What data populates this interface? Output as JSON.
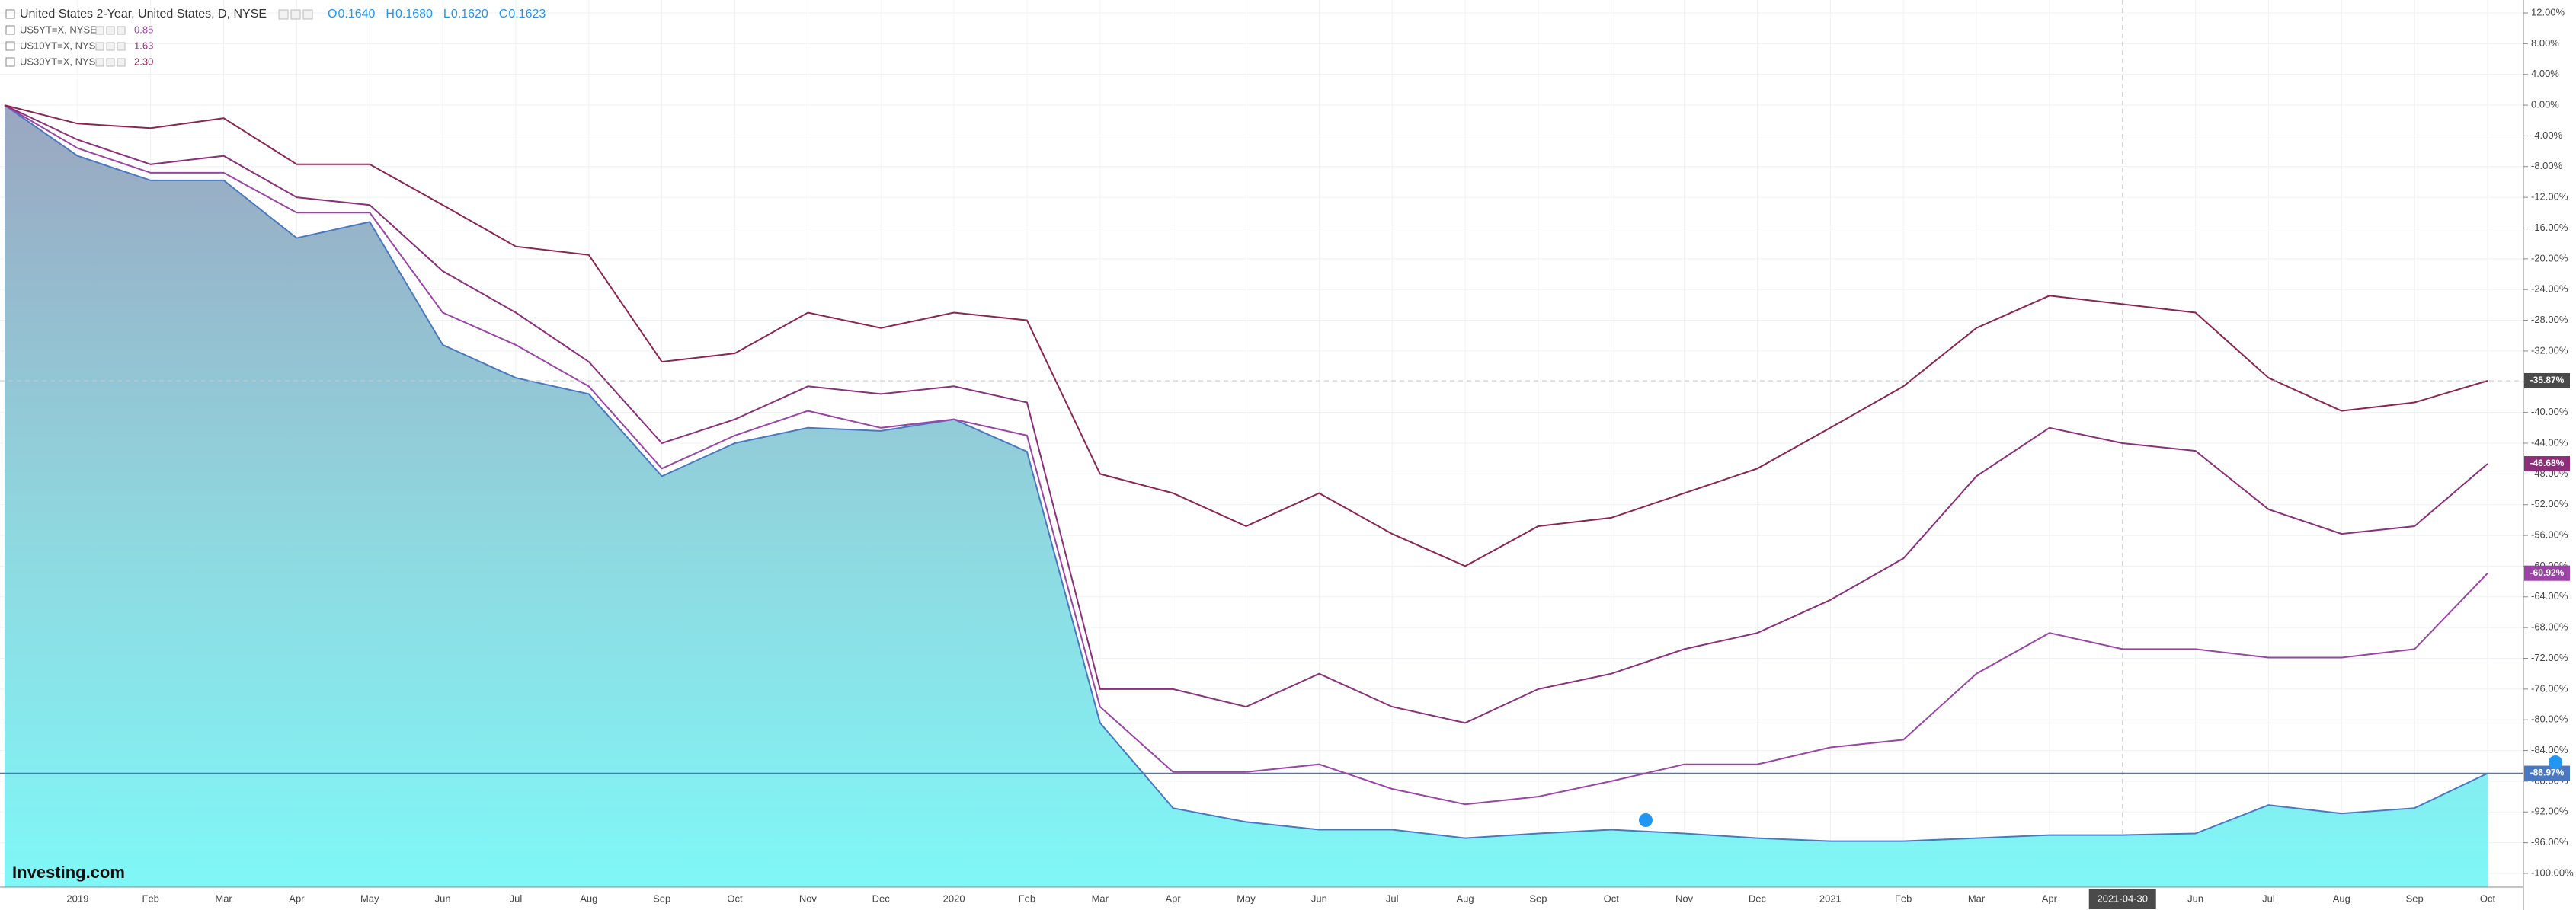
{
  "chart_data": {
    "type": "line",
    "header": {
      "ohlc": [
        [
          "O",
          "0.1640"
        ],
        [
          "H",
          "0.1680"
        ],
        [
          "L",
          "0.1620"
        ],
        [
          "C",
          "0.1623"
        ]
      ]
    },
    "logo": "Investing.com",
    "crosshair_label": "2021-04-30",
    "categories": [
      null,
      "2019",
      "Feb",
      "Mar",
      "Apr",
      "May",
      "Jun",
      "Jul",
      "Aug",
      "Sep",
      "Oct",
      "Nov",
      "Dec",
      "2020",
      "Feb",
      "Mar",
      "Apr",
      "May",
      "Jun",
      "Jul",
      "Aug",
      "Sep",
      "Oct",
      "Nov",
      "Dec",
      "2021",
      "Feb",
      "Mar",
      "Apr",
      null,
      "Jun",
      "Jul",
      "Aug",
      "Sep",
      "Oct"
    ],
    "ylim": [
      -100,
      12
    ],
    "yticks": [
      {
        "value": 12,
        "label": "12.00%"
      },
      {
        "value": 8,
        "label": "8.00%"
      },
      {
        "value": 4,
        "label": "4.00%"
      },
      {
        "value": 0,
        "label": "0.00%"
      },
      {
        "value": -4,
        "label": "-4.00%"
      },
      {
        "value": -8,
        "label": "-8.00%"
      },
      {
        "value": -12,
        "label": "-12.00%"
      },
      {
        "value": -16,
        "label": "-16.00%"
      },
      {
        "value": -20,
        "label": "-20.00%"
      },
      {
        "value": -24,
        "label": "-24.00%"
      },
      {
        "value": -28,
        "label": "-28.00%"
      },
      {
        "value": -32,
        "label": "-32.00%"
      },
      {
        "value": -36,
        "label": "-36.00%"
      },
      {
        "value": -40,
        "label": "-40.00%"
      },
      {
        "value": -44,
        "label": "-44.00%"
      },
      {
        "value": -48,
        "label": "-48.00%"
      },
      {
        "value": -52,
        "label": "-52.00%"
      },
      {
        "value": -56,
        "label": "-56.00%"
      },
      {
        "value": -60,
        "label": "-60.00%"
      },
      {
        "value": -64,
        "label": "-64.00%"
      },
      {
        "value": -68,
        "label": "-68.00%"
      },
      {
        "value": -72,
        "label": "-72.00%"
      },
      {
        "value": -76,
        "label": "-76.00%"
      },
      {
        "value": -80,
        "label": "-80.00%"
      },
      {
        "value": -84,
        "label": "-84.00%"
      },
      {
        "value": -88,
        "label": "-88.00%"
      },
      {
        "value": -92,
        "label": "-92.00%"
      },
      {
        "value": -96,
        "label": "-96.00%"
      },
      {
        "value": -100,
        "label": "-100.00%"
      }
    ],
    "grid": true,
    "series": [
      {
        "name": "United States 2-Year, United States, D, NYSE",
        "color": "#4a78c0",
        "area": true,
        "values": [
          0,
          -6.6,
          -9.8,
          -9.8,
          -17.3,
          -15.2,
          -31.2,
          -35.5,
          -37.6,
          -48.3,
          -44,
          -42,
          -42.4,
          -40.9,
          -45.1,
          -80.4,
          -91.5,
          -93.3,
          -94.3,
          -94.3,
          -95.4,
          -94.8,
          -94.3,
          -94.8,
          -95.4,
          -95.8,
          -95.8,
          -95.4,
          -95,
          -95,
          -94.8,
          -91.1,
          -92.2,
          -91.5,
          -86.97
        ],
        "value_labels": [
          null,
          null,
          null,
          null,
          null,
          null,
          null,
          null,
          null,
          null,
          null,
          null,
          null,
          null,
          null,
          null,
          null,
          null,
          null,
          null,
          null,
          null,
          null,
          null,
          null,
          null,
          null,
          null,
          null,
          null,
          null,
          null,
          null,
          null,
          "-86.97%"
        ]
      },
      {
        "name": "US5YT=X, NYSE",
        "price": "0.85",
        "color": "#9a45a6",
        "values": [
          0,
          -5.6,
          -8.8,
          -8.8,
          -14,
          -14,
          -27,
          -31.2,
          -36.6,
          -47.3,
          -43,
          -39.8,
          -42,
          -40.9,
          -43,
          -78.3,
          -86.8,
          -86.8,
          -85.8,
          -89,
          -91,
          -90,
          -88,
          -85.8,
          -85.8,
          -83.6,
          -82.6,
          -74,
          -68.7,
          -70.8,
          -70.8,
          -71.9,
          -71.9,
          -70.8,
          -60.92
        ],
        "value_labels": [
          null,
          null,
          null,
          null,
          null,
          null,
          null,
          null,
          null,
          null,
          null,
          null,
          null,
          null,
          null,
          null,
          null,
          null,
          null,
          null,
          null,
          null,
          null,
          null,
          null,
          null,
          null,
          null,
          null,
          null,
          null,
          null,
          null,
          null,
          "-60.92%"
        ]
      },
      {
        "name": "US10YT=X, NYSE",
        "price": "1.63",
        "color": "#8a2f78",
        "values": [
          0,
          -4.5,
          -7.7,
          -6.6,
          -12,
          -13,
          -21.6,
          -27,
          -33.4,
          -44,
          -40.9,
          -36.6,
          -37.6,
          -36.6,
          -38.7,
          -76,
          -76,
          -78.3,
          -74,
          -78.3,
          -80.4,
          -76,
          -74,
          -70.8,
          -68.7,
          -64.4,
          -59,
          -48.3,
          -42,
          -44,
          -45,
          -52.6,
          -55.8,
          -54.8,
          -46.68
        ],
        "value_labels": [
          null,
          null,
          null,
          null,
          null,
          null,
          null,
          null,
          null,
          null,
          null,
          null,
          null,
          null,
          null,
          null,
          null,
          null,
          null,
          null,
          null,
          null,
          null,
          null,
          null,
          null,
          null,
          null,
          null,
          null,
          null,
          null,
          null,
          null,
          "-46.68%"
        ]
      },
      {
        "name": "US30YT=X, NYSE",
        "price": "2.30",
        "color": "#8b2550",
        "values": [
          0,
          -2.4,
          -3,
          -1.7,
          -7.7,
          -7.7,
          -13,
          -18.4,
          -19.5,
          -33.4,
          -32.3,
          -27,
          -29,
          -27,
          -28,
          -48,
          -50.5,
          -54.8,
          -50.5,
          -55.8,
          -60,
          -54.8,
          -53.7,
          -50.5,
          -47.3,
          -42,
          -36.6,
          -29,
          -24.8,
          -25.9,
          -27,
          -35.5,
          -39.8,
          -38.7,
          -35.87
        ],
        "value_labels": [
          null,
          null,
          null,
          null,
          null,
          null,
          null,
          null,
          null,
          null,
          null,
          null,
          null,
          null,
          null,
          null,
          null,
          null,
          null,
          null,
          null,
          null,
          null,
          null,
          null,
          null,
          null,
          null,
          null,
          null,
          null,
          null,
          null,
          null,
          "-35.87%"
        ]
      }
    ]
  }
}
